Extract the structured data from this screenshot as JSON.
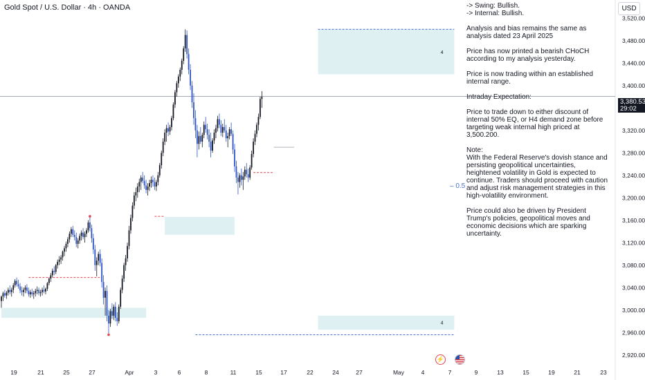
{
  "header": {
    "title": "Gold Spot / U.S. Dollar · 4h · OANDA"
  },
  "currency": "USD",
  "price_label": {
    "price": "3,380.535",
    "countdown": "29:02"
  },
  "half_label": "0.5",
  "zone_markers": [
    "4",
    "4"
  ],
  "events": {
    "bolt": "⚡"
  },
  "analysis": {
    "lines": [
      "-> Swing:  Bullish.\n-> Internal:  Bullish.",
      "Analysis and bias remains the same as analysis dated 23 April 2025",
      "Price has now printed a bearish CHoCH according to my analysis yesterday.",
      "Price is now trading within an established internal range.",
      "Intraday Expectation:",
      "Price to trade down to either discount of internal 50% EQ, or H4 demand zone before targeting weak internal high priced at 3,500.200.",
      "Note:\nWith the Federal Reserve's dovish stance and persisting geopolitical uncertainties, heightened volatility in Gold is expected to continue. Traders should proceed with caution and adjust risk management strategies in this high-volatility environment.",
      "Price could also be driven by President Trump's policies, geopolitical moves and economic decisions which are sparking uncertainty."
    ]
  },
  "colors": {
    "bull": "#131722",
    "bear": "#2e53c4",
    "zone": "#dff0f2",
    "dash_red": "#e0454f",
    "dash_blue": "#4a6fd0",
    "price_line": "#9aa0ab"
  },
  "chart_data": {
    "type": "candlestick",
    "symbol": "Gold Spot / U.S. Dollar",
    "timeframe": "4h",
    "ylim": [
      2900,
      3540
    ],
    "y_ticks": [
      2920,
      2960,
      3000,
      3040,
      3080,
      3120,
      3160,
      3200,
      3240,
      3280,
      3320,
      3360,
      3400,
      3440,
      3480,
      3520
    ],
    "y_tick_labels": [
      "2,920.000",
      "2,960.000",
      "3,000.000",
      "3,040.000",
      "3,080.000",
      "3,120.000",
      "3,160.000",
      "3,200.000",
      "3,240.000",
      "3,280.000",
      "3,320.000",
      "3,360.000",
      "3,400.000",
      "3,440.000",
      "3,480.000",
      "3,520.000"
    ],
    "x_labels": [
      "19",
      "21",
      "25",
      "27",
      "Apr",
      "3",
      "6",
      "8",
      "11",
      "15",
      "17",
      "22",
      "24",
      "27",
      "May",
      "4",
      "7",
      "9",
      "13",
      "15",
      "19",
      "21",
      "23"
    ],
    "last_price": 3380.535,
    "ohlc": [
      [
        3016,
        3026,
        3004,
        3024
      ],
      [
        3024,
        3033,
        3016,
        3030
      ],
      [
        3030,
        3036,
        3022,
        3026
      ],
      [
        3026,
        3034,
        3020,
        3031
      ],
      [
        3031,
        3040,
        3026,
        3036
      ],
      [
        3036,
        3044,
        3028,
        3032
      ],
      [
        3032,
        3040,
        3024,
        3036
      ],
      [
        3036,
        3048,
        3030,
        3044
      ],
      [
        3044,
        3055,
        3040,
        3052
      ],
      [
        3052,
        3058,
        3042,
        3046
      ],
      [
        3046,
        3054,
        3038,
        3042
      ],
      [
        3042,
        3048,
        3030,
        3035
      ],
      [
        3035,
        3042,
        3026,
        3032
      ],
      [
        3032,
        3040,
        3024,
        3036
      ],
      [
        3036,
        3044,
        3030,
        3040
      ],
      [
        3040,
        3046,
        3030,
        3034
      ],
      [
        3034,
        3040,
        3024,
        3028
      ],
      [
        3028,
        3036,
        3022,
        3032
      ],
      [
        3032,
        3038,
        3024,
        3028
      ],
      [
        3028,
        3034,
        3020,
        3030
      ],
      [
        3030,
        3038,
        3024,
        3034
      ],
      [
        3034,
        3042,
        3028,
        3036
      ],
      [
        3036,
        3040,
        3026,
        3030
      ],
      [
        3030,
        3036,
        3024,
        3032
      ],
      [
        3032,
        3040,
        3026,
        3036
      ],
      [
        3036,
        3044,
        3030,
        3033
      ],
      [
        3033,
        3040,
        3028,
        3038
      ],
      [
        3038,
        3050,
        3034,
        3048
      ],
      [
        3048,
        3058,
        3044,
        3056
      ],
      [
        3056,
        3066,
        3050,
        3062
      ],
      [
        3062,
        3074,
        3058,
        3070
      ],
      [
        3070,
        3078,
        3062,
        3068
      ],
      [
        3068,
        3082,
        3064,
        3080
      ],
      [
        3080,
        3090,
        3074,
        3086
      ],
      [
        3086,
        3096,
        3080,
        3090
      ],
      [
        3090,
        3098,
        3082,
        3094
      ],
      [
        3094,
        3106,
        3088,
        3104
      ],
      [
        3104,
        3114,
        3096,
        3110
      ],
      [
        3110,
        3122,
        3104,
        3118
      ],
      [
        3118,
        3130,
        3112,
        3126
      ],
      [
        3126,
        3140,
        3120,
        3136
      ],
      [
        3136,
        3148,
        3130,
        3144
      ],
      [
        3144,
        3150,
        3130,
        3134
      ],
      [
        3134,
        3142,
        3124,
        3130
      ],
      [
        3130,
        3138,
        3112,
        3118
      ],
      [
        3118,
        3128,
        3110,
        3124
      ],
      [
        3124,
        3136,
        3118,
        3132
      ],
      [
        3132,
        3142,
        3124,
        3138
      ],
      [
        3138,
        3146,
        3126,
        3130
      ],
      [
        3130,
        3140,
        3120,
        3136
      ],
      [
        3136,
        3146,
        3130,
        3142
      ],
      [
        3142,
        3160,
        3138,
        3156
      ],
      [
        3156,
        3167,
        3140,
        3146
      ],
      [
        3146,
        3152,
        3120,
        3128
      ],
      [
        3128,
        3136,
        3100,
        3108
      ],
      [
        3108,
        3116,
        3070,
        3080
      ],
      [
        3080,
        3094,
        3060,
        3088
      ],
      [
        3088,
        3104,
        3080,
        3100
      ],
      [
        3100,
        3108,
        3078,
        3084
      ],
      [
        3084,
        3092,
        3040,
        3050
      ],
      [
        3050,
        3062,
        3010,
        3022
      ],
      [
        3022,
        3040,
        2990,
        3034
      ],
      [
        3034,
        3044,
        2980,
        2990
      ],
      [
        2990,
        3000,
        2956,
        2976
      ],
      [
        2976,
        3002,
        2970,
        2998
      ],
      [
        2998,
        3012,
        2984,
        2990
      ],
      [
        2990,
        3010,
        2982,
        3006
      ],
      [
        3006,
        3014,
        2980,
        2986
      ],
      [
        2986,
        2996,
        2972,
        2980
      ],
      [
        2980,
        3010,
        2976,
        3006
      ],
      [
        3006,
        3040,
        3002,
        3036
      ],
      [
        3036,
        3062,
        3030,
        3056
      ],
      [
        3056,
        3084,
        3050,
        3080
      ],
      [
        3080,
        3098,
        3070,
        3092
      ],
      [
        3092,
        3120,
        3086,
        3114
      ],
      [
        3114,
        3150,
        3108,
        3142
      ],
      [
        3142,
        3170,
        3136,
        3164
      ],
      [
        3164,
        3192,
        3158,
        3186
      ],
      [
        3186,
        3210,
        3180,
        3204
      ],
      [
        3204,
        3218,
        3194,
        3210
      ],
      [
        3210,
        3226,
        3200,
        3220
      ],
      [
        3220,
        3234,
        3210,
        3228
      ],
      [
        3228,
        3240,
        3214,
        3236
      ],
      [
        3236,
        3246,
        3226,
        3230
      ],
      [
        3230,
        3240,
        3216,
        3222
      ],
      [
        3222,
        3232,
        3208,
        3214
      ],
      [
        3214,
        3226,
        3204,
        3220
      ],
      [
        3220,
        3232,
        3212,
        3226
      ],
      [
        3226,
        3238,
        3218,
        3232
      ],
      [
        3232,
        3240,
        3220,
        3228
      ],
      [
        3228,
        3236,
        3214,
        3220
      ],
      [
        3220,
        3232,
        3212,
        3228
      ],
      [
        3228,
        3246,
        3222,
        3240
      ],
      [
        3240,
        3262,
        3236,
        3258
      ],
      [
        3258,
        3284,
        3252,
        3280
      ],
      [
        3280,
        3306,
        3274,
        3300
      ],
      [
        3300,
        3322,
        3294,
        3316
      ],
      [
        3316,
        3330,
        3300,
        3324
      ],
      [
        3324,
        3334,
        3310,
        3318
      ],
      [
        3318,
        3330,
        3312,
        3326
      ],
      [
        3326,
        3346,
        3320,
        3342
      ],
      [
        3342,
        3370,
        3338,
        3366
      ],
      [
        3366,
        3392,
        3360,
        3388
      ],
      [
        3388,
        3408,
        3380,
        3404
      ],
      [
        3404,
        3420,
        3396,
        3416
      ],
      [
        3416,
        3432,
        3408,
        3428
      ],
      [
        3428,
        3448,
        3420,
        3444
      ],
      [
        3444,
        3470,
        3438,
        3466
      ],
      [
        3466,
        3500,
        3460,
        3490
      ],
      [
        3490,
        3498,
        3448,
        3456
      ],
      [
        3456,
        3466,
        3420,
        3428
      ],
      [
        3428,
        3438,
        3392,
        3400
      ],
      [
        3400,
        3408,
        3360,
        3370
      ],
      [
        3370,
        3386,
        3330,
        3342
      ],
      [
        3342,
        3356,
        3306,
        3320
      ],
      [
        3320,
        3330,
        3272,
        3296
      ],
      [
        3296,
        3318,
        3286,
        3310
      ],
      [
        3310,
        3326,
        3296,
        3300
      ],
      [
        3300,
        3316,
        3290,
        3312
      ],
      [
        3312,
        3336,
        3306,
        3330
      ],
      [
        3330,
        3344,
        3316,
        3322
      ],
      [
        3322,
        3332,
        3304,
        3312
      ],
      [
        3312,
        3322,
        3290,
        3300
      ],
      [
        3300,
        3316,
        3272,
        3284
      ],
      [
        3284,
        3306,
        3280,
        3302
      ],
      [
        3302,
        3322,
        3296,
        3316
      ],
      [
        3316,
        3330,
        3306,
        3324
      ],
      [
        3324,
        3346,
        3318,
        3340
      ],
      [
        3340,
        3350,
        3324,
        3330
      ],
      [
        3330,
        3338,
        3310,
        3316
      ],
      [
        3316,
        3332,
        3308,
        3326
      ],
      [
        3326,
        3340,
        3316,
        3320
      ],
      [
        3320,
        3330,
        3300,
        3306
      ],
      [
        3306,
        3316,
        3290,
        3310
      ],
      [
        3310,
        3326,
        3304,
        3322
      ],
      [
        3322,
        3334,
        3310,
        3314
      ],
      [
        3314,
        3320,
        3278,
        3286
      ],
      [
        3286,
        3296,
        3246,
        3256
      ],
      [
        3256,
        3266,
        3226,
        3236
      ],
      [
        3236,
        3246,
        3206,
        3228
      ],
      [
        3228,
        3244,
        3218,
        3240
      ],
      [
        3240,
        3252,
        3222,
        3232
      ],
      [
        3232,
        3246,
        3214,
        3238
      ],
      [
        3238,
        3256,
        3232,
        3250
      ],
      [
        3250,
        3262,
        3236,
        3242
      ],
      [
        3242,
        3252,
        3228,
        3236
      ],
      [
        3236,
        3258,
        3232,
        3254
      ],
      [
        3254,
        3284,
        3250,
        3278
      ],
      [
        3278,
        3306,
        3272,
        3300
      ],
      [
        3300,
        3320,
        3294,
        3314
      ],
      [
        3314,
        3334,
        3308,
        3330
      ],
      [
        3330,
        3350,
        3320,
        3344
      ],
      [
        3344,
        3380,
        3340,
        3376
      ],
      [
        3376,
        3390,
        3360,
        3380
      ]
    ],
    "zones": [
      {
        "from": 0,
        "to": 85,
        "low": 2986,
        "high": 3004
      },
      {
        "from": 96,
        "to": 137,
        "low": 3134,
        "high": 3166
      },
      {
        "from": 186,
        "to": 266,
        "low": 2965,
        "high": 2990
      },
      {
        "from": 186,
        "to": 266,
        "low": 3420,
        "high": 3500
      }
    ],
    "levels": [
      {
        "value": 3058,
        "from": 16,
        "to": 58,
        "style": "dash_red"
      },
      {
        "value": 3167,
        "from": 90,
        "to": 96,
        "style": "dash_red"
      },
      {
        "value": 3245,
        "from": 148,
        "to": 160,
        "style": "dash_red"
      },
      {
        "value": 3500.2,
        "from": 186,
        "to": 266,
        "style": "dash_blue"
      },
      {
        "value": 2956,
        "from": 114,
        "to": 266,
        "style": "dash_blue"
      },
      {
        "value": 3290,
        "from": 160,
        "to": 172,
        "style": "solid_grey"
      }
    ],
    "pivot_points": [
      {
        "index": 52,
        "value": 3167
      },
      {
        "index": 63,
        "value": 2956
      }
    ]
  }
}
